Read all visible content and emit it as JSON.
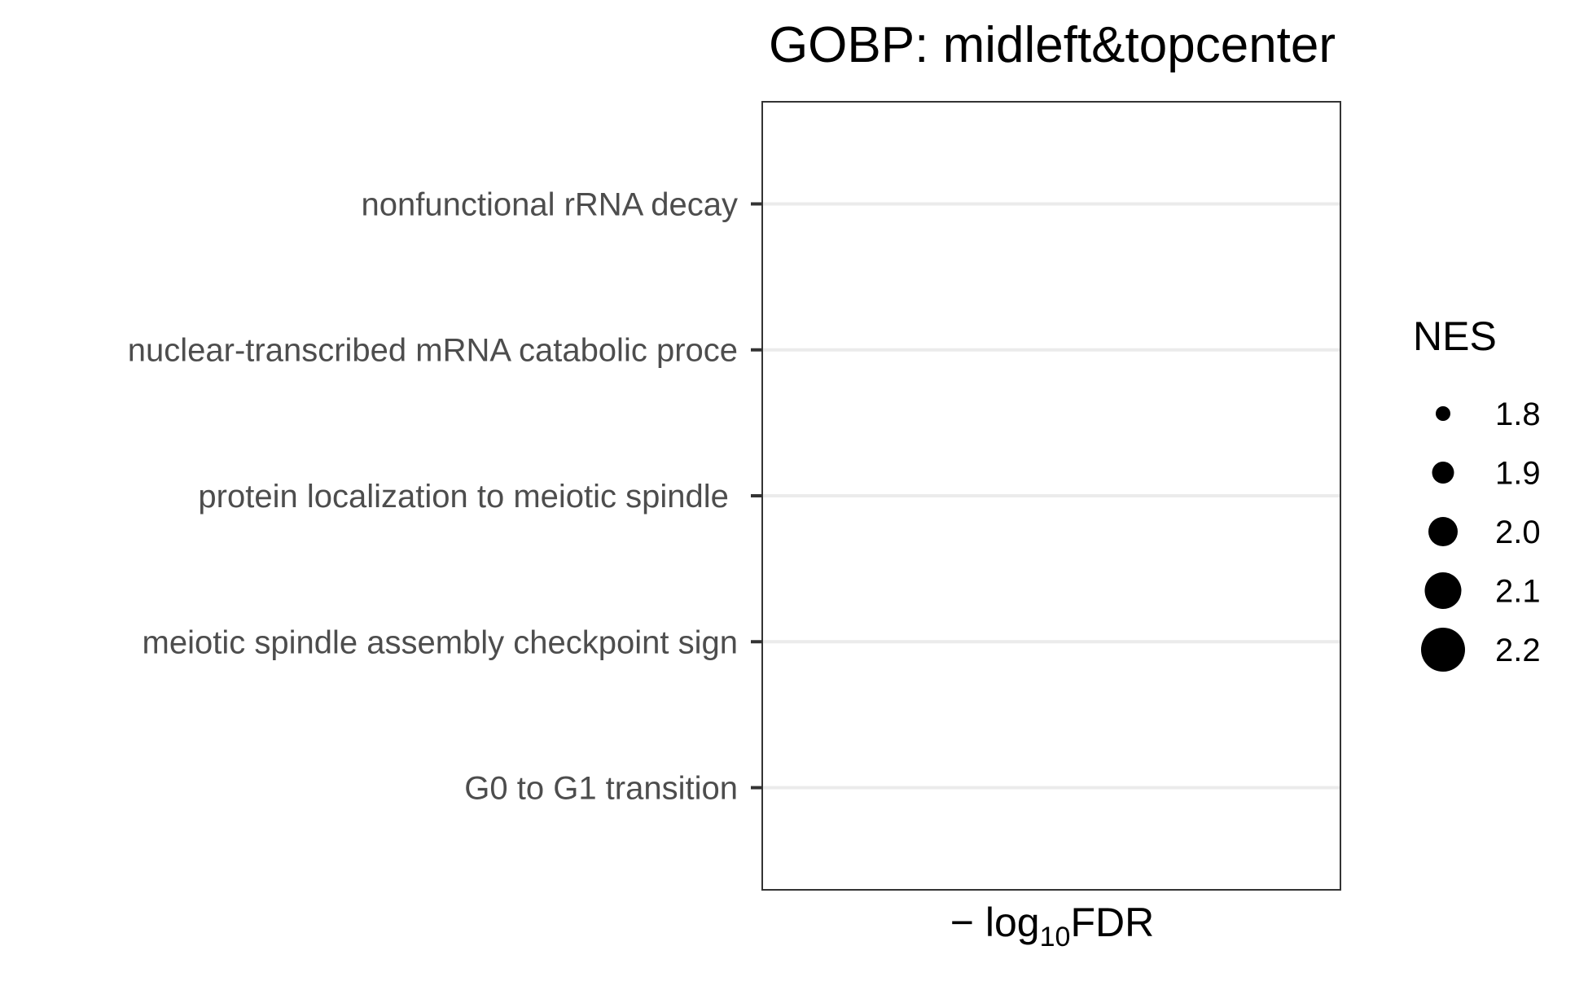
{
  "chart_data": {
    "type": "scatter",
    "title": "GOBP: midleft&topcenter",
    "xlabel": {
      "prefix": "− log",
      "subscript": "10",
      "suffix": "FDR"
    },
    "ylabel": "",
    "categories": [
      "nonfunctional rRNA decay",
      "nuclear-transcribed mRNA catabolic proce",
      "protein localization to meiotic spindle ",
      "meiotic spindle assembly checkpoint sign",
      "G0 to G1 transition"
    ],
    "points": [],
    "grid": {
      "major_y": true,
      "major_x": false,
      "color": "#ebebeb"
    },
    "legend": {
      "title": "NES",
      "position": "right",
      "kind": "size",
      "entries": [
        {
          "label": "1.8",
          "value": 1.8
        },
        {
          "label": "1.9",
          "value": 1.9
        },
        {
          "label": "2.0",
          "value": 2.0
        },
        {
          "label": "2.1",
          "value": 2.1
        },
        {
          "label": "2.2",
          "value": 2.2
        }
      ]
    },
    "colors": {
      "text": "#000000",
      "tick_text": "#4d4d4d",
      "panel_border": "#333333",
      "point": "#000000"
    }
  }
}
